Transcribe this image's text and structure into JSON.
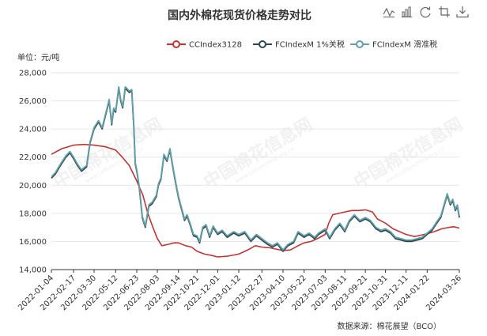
{
  "toolbar": {
    "icons": [
      "line-chart-icon",
      "bar-chart-icon",
      "restore-icon",
      "crop-icon",
      "download-icon"
    ]
  },
  "chart_data": {
    "type": "line",
    "title": "国内外棉花现货价格走势对比",
    "ylabel": "单位：元/吨",
    "ylim": [
      14000,
      28000
    ],
    "yticks": [
      14000,
      16000,
      18000,
      20000,
      22000,
      24000,
      26000,
      28000
    ],
    "ytick_labels": [
      "14,000",
      "16,000",
      "18,000",
      "20,000",
      "22,000",
      "24,000",
      "26,000",
      "28,000"
    ],
    "xlim": [
      "2022-01-04",
      "2024-03-26"
    ],
    "xticks": [
      "2022-01-04",
      "2022-02-17",
      "2022-03-30",
      "2022-05-12",
      "2022-06-23",
      "2022-08-03",
      "2022-09-14",
      "2022-10-21",
      "2022-12-01",
      "2023-01-12",
      "2023-02-27",
      "2023-04-10",
      "2023-05-22",
      "2023-07-03",
      "2023-08-11",
      "2023-09-21",
      "2023-10-31",
      "2023-12-11",
      "2024-01-22",
      "2024-03-26"
    ],
    "grid": "horizontal",
    "legend_position": "top-right",
    "series": [
      {
        "name": "CCIndex3128",
        "color": "#c23531",
        "points": [
          [
            "2022-01-04",
            22200
          ],
          [
            "2022-01-25",
            22600
          ],
          [
            "2022-02-17",
            22850
          ],
          [
            "2022-03-10",
            22900
          ],
          [
            "2022-03-30",
            22850
          ],
          [
            "2022-04-20",
            22750
          ],
          [
            "2022-05-12",
            22500
          ],
          [
            "2022-05-25",
            22000
          ],
          [
            "2022-06-08",
            21400
          ],
          [
            "2022-06-23",
            20300
          ],
          [
            "2022-07-05",
            19300
          ],
          [
            "2022-07-15",
            18000
          ],
          [
            "2022-07-25",
            17000
          ],
          [
            "2022-08-03",
            16200
          ],
          [
            "2022-08-12",
            15700
          ],
          [
            "2022-08-25",
            15800
          ],
          [
            "2022-09-05",
            15900
          ],
          [
            "2022-09-14",
            15900
          ],
          [
            "2022-09-28",
            15700
          ],
          [
            "2022-10-10",
            15600
          ],
          [
            "2022-10-21",
            15300
          ],
          [
            "2022-11-05",
            15100
          ],
          [
            "2022-11-20",
            15000
          ],
          [
            "2022-12-01",
            14900
          ],
          [
            "2022-12-20",
            14950
          ],
          [
            "2023-01-12",
            15100
          ],
          [
            "2023-01-30",
            15400
          ],
          [
            "2023-02-14",
            15700
          ],
          [
            "2023-02-27",
            15600
          ],
          [
            "2023-03-15",
            15550
          ],
          [
            "2023-04-10",
            15350
          ],
          [
            "2023-04-25",
            15400
          ],
          [
            "2023-05-10",
            15700
          ],
          [
            "2023-05-22",
            15900
          ],
          [
            "2023-06-05",
            16000
          ],
          [
            "2023-06-20",
            16250
          ],
          [
            "2023-07-03",
            16500
          ],
          [
            "2023-07-10",
            17300
          ],
          [
            "2023-07-18",
            17900
          ],
          [
            "2023-08-11",
            18100
          ],
          [
            "2023-08-25",
            18200
          ],
          [
            "2023-09-08",
            18200
          ],
          [
            "2023-09-21",
            18250
          ],
          [
            "2023-10-05",
            18100
          ],
          [
            "2023-10-15",
            17600
          ],
          [
            "2023-10-31",
            17300
          ],
          [
            "2023-11-15",
            16900
          ],
          [
            "2023-12-11",
            16500
          ],
          [
            "2023-12-28",
            16350
          ],
          [
            "2024-01-10",
            16450
          ],
          [
            "2024-01-22",
            16550
          ],
          [
            "2024-02-05",
            16700
          ],
          [
            "2024-02-20",
            16900
          ],
          [
            "2024-03-05",
            17000
          ],
          [
            "2024-03-15",
            17050
          ],
          [
            "2024-03-26",
            16950
          ]
        ]
      },
      {
        "name": "FCIndexM 1%关税",
        "color": "#2f4554",
        "points": [
          [
            "2022-01-04",
            20500
          ],
          [
            "2022-01-12",
            20800
          ],
          [
            "2022-01-22",
            21400
          ],
          [
            "2022-02-02",
            22000
          ],
          [
            "2022-02-10",
            22300
          ],
          [
            "2022-02-17",
            21900
          ],
          [
            "2022-02-25",
            21400
          ],
          [
            "2022-03-05",
            21000
          ],
          [
            "2022-03-15",
            21300
          ],
          [
            "2022-03-22",
            23000
          ],
          [
            "2022-03-30",
            24000
          ],
          [
            "2022-04-08",
            24500
          ],
          [
            "2022-04-15",
            24000
          ],
          [
            "2022-04-22",
            25000
          ],
          [
            "2022-04-29",
            26000
          ],
          [
            "2022-05-04",
            24300
          ],
          [
            "2022-05-08",
            25400
          ],
          [
            "2022-05-12",
            25200
          ],
          [
            "2022-05-18",
            26900
          ],
          [
            "2022-05-22",
            26000
          ],
          [
            "2022-05-26",
            25500
          ],
          [
            "2022-05-31",
            26900
          ],
          [
            "2022-06-08",
            26600
          ],
          [
            "2022-06-13",
            26700
          ],
          [
            "2022-06-17",
            24200
          ],
          [
            "2022-06-20",
            21500
          ],
          [
            "2022-06-23",
            21000
          ],
          [
            "2022-06-28",
            19800
          ],
          [
            "2022-07-04",
            17700
          ],
          [
            "2022-07-10",
            17000
          ],
          [
            "2022-07-17",
            18500
          ],
          [
            "2022-07-24",
            18700
          ],
          [
            "2022-08-01",
            19200
          ],
          [
            "2022-08-05",
            20000
          ],
          [
            "2022-08-10",
            20400
          ],
          [
            "2022-08-16",
            22100
          ],
          [
            "2022-08-22",
            21700
          ],
          [
            "2022-08-28",
            22500
          ],
          [
            "2022-09-03",
            21200
          ],
          [
            "2022-09-08",
            20200
          ],
          [
            "2022-09-14",
            19100
          ],
          [
            "2022-09-20",
            18300
          ],
          [
            "2022-09-26",
            17500
          ],
          [
            "2022-10-01",
            17800
          ],
          [
            "2022-10-07",
            17200
          ],
          [
            "2022-10-14",
            16400
          ],
          [
            "2022-10-21",
            16300
          ],
          [
            "2022-10-26",
            15900
          ],
          [
            "2022-11-01",
            16900
          ],
          [
            "2022-11-08",
            17100
          ],
          [
            "2022-11-15",
            16300
          ],
          [
            "2022-11-22",
            17000
          ],
          [
            "2022-12-01",
            16500
          ],
          [
            "2022-12-10",
            16700
          ],
          [
            "2022-12-20",
            16300
          ],
          [
            "2023-01-02",
            16600
          ],
          [
            "2023-01-12",
            16400
          ],
          [
            "2023-01-24",
            16600
          ],
          [
            "2023-02-05",
            16000
          ],
          [
            "2023-02-16",
            16400
          ],
          [
            "2023-02-27",
            16100
          ],
          [
            "2023-03-10",
            15800
          ],
          [
            "2023-03-20",
            15600
          ],
          [
            "2023-03-30",
            15800
          ],
          [
            "2023-04-10",
            15300
          ],
          [
            "2023-04-20",
            15700
          ],
          [
            "2023-05-01",
            15900
          ],
          [
            "2023-05-10",
            16600
          ],
          [
            "2023-05-22",
            16300
          ],
          [
            "2023-06-01",
            16500
          ],
          [
            "2023-06-12",
            16200
          ],
          [
            "2023-06-20",
            16500
          ],
          [
            "2023-07-03",
            16800
          ],
          [
            "2023-07-12",
            16200
          ],
          [
            "2023-07-22",
            16800
          ],
          [
            "2023-08-01",
            17200
          ],
          [
            "2023-08-11",
            16700
          ],
          [
            "2023-08-20",
            17400
          ],
          [
            "2023-08-30",
            17800
          ],
          [
            "2023-09-10",
            17400
          ],
          [
            "2023-09-21",
            17600
          ],
          [
            "2023-10-01",
            17400
          ],
          [
            "2023-10-12",
            16900
          ],
          [
            "2023-10-22",
            16700
          ],
          [
            "2023-10-31",
            16800
          ],
          [
            "2023-11-10",
            16600
          ],
          [
            "2023-11-20",
            16200
          ],
          [
            "2023-12-01",
            16100
          ],
          [
            "2023-12-11",
            16000
          ],
          [
            "2023-12-22",
            16000
          ],
          [
            "2024-01-02",
            16100
          ],
          [
            "2024-01-12",
            16200
          ],
          [
            "2024-01-22",
            16500
          ],
          [
            "2024-02-01",
            16800
          ],
          [
            "2024-02-10",
            17300
          ],
          [
            "2024-02-18",
            17700
          ],
          [
            "2024-02-26",
            18700
          ],
          [
            "2024-03-02",
            19300
          ],
          [
            "2024-03-08",
            18600
          ],
          [
            "2024-03-13",
            18900
          ],
          [
            "2024-03-18",
            18200
          ],
          [
            "2024-03-22",
            18500
          ],
          [
            "2024-03-26",
            17700
          ]
        ]
      },
      {
        "name": "FCIndexM 滑准税",
        "color": "#61a0a8",
        "points": [
          [
            "2022-01-04",
            20600
          ],
          [
            "2022-01-12",
            20900
          ],
          [
            "2022-01-22",
            21500
          ],
          [
            "2022-02-02",
            22100
          ],
          [
            "2022-02-10",
            22400
          ],
          [
            "2022-02-17",
            22000
          ],
          [
            "2022-02-25",
            21500
          ],
          [
            "2022-03-05",
            21100
          ],
          [
            "2022-03-15",
            21400
          ],
          [
            "2022-03-22",
            23100
          ],
          [
            "2022-03-30",
            24100
          ],
          [
            "2022-04-08",
            24600
          ],
          [
            "2022-04-15",
            24100
          ],
          [
            "2022-04-22",
            25100
          ],
          [
            "2022-04-29",
            26100
          ],
          [
            "2022-05-04",
            24400
          ],
          [
            "2022-05-08",
            25500
          ],
          [
            "2022-05-12",
            25300
          ],
          [
            "2022-05-18",
            27000
          ],
          [
            "2022-05-22",
            26100
          ],
          [
            "2022-05-26",
            25600
          ],
          [
            "2022-05-31",
            27000
          ],
          [
            "2022-06-08",
            26700
          ],
          [
            "2022-06-13",
            26800
          ],
          [
            "2022-06-17",
            24300
          ],
          [
            "2022-06-20",
            21600
          ],
          [
            "2022-06-23",
            21100
          ],
          [
            "2022-06-28",
            19900
          ],
          [
            "2022-07-04",
            17800
          ],
          [
            "2022-07-10",
            17100
          ],
          [
            "2022-07-17",
            18600
          ],
          [
            "2022-07-24",
            18800
          ],
          [
            "2022-08-01",
            19300
          ],
          [
            "2022-08-05",
            20100
          ],
          [
            "2022-08-10",
            20500
          ],
          [
            "2022-08-16",
            22200
          ],
          [
            "2022-08-22",
            21800
          ],
          [
            "2022-08-28",
            22600
          ],
          [
            "2022-09-03",
            21300
          ],
          [
            "2022-09-08",
            20300
          ],
          [
            "2022-09-14",
            19200
          ],
          [
            "2022-09-20",
            18400
          ],
          [
            "2022-09-26",
            17600
          ],
          [
            "2022-10-01",
            17900
          ],
          [
            "2022-10-07",
            17300
          ],
          [
            "2022-10-14",
            16500
          ],
          [
            "2022-10-21",
            16400
          ],
          [
            "2022-10-26",
            16000
          ],
          [
            "2022-11-01",
            17000
          ],
          [
            "2022-11-08",
            17200
          ],
          [
            "2022-11-15",
            16400
          ],
          [
            "2022-11-22",
            17100
          ],
          [
            "2022-12-01",
            16600
          ],
          [
            "2022-12-10",
            16800
          ],
          [
            "2022-12-20",
            16400
          ],
          [
            "2023-01-02",
            16700
          ],
          [
            "2023-01-12",
            16500
          ],
          [
            "2023-01-24",
            16700
          ],
          [
            "2023-02-05",
            16100
          ],
          [
            "2023-02-16",
            16500
          ],
          [
            "2023-02-27",
            16200
          ],
          [
            "2023-03-10",
            15900
          ],
          [
            "2023-03-20",
            15700
          ],
          [
            "2023-03-30",
            15900
          ],
          [
            "2023-04-10",
            15400
          ],
          [
            "2023-04-20",
            15800
          ],
          [
            "2023-05-01",
            16000
          ],
          [
            "2023-05-10",
            16700
          ],
          [
            "2023-05-22",
            16400
          ],
          [
            "2023-06-01",
            16600
          ],
          [
            "2023-06-12",
            16300
          ],
          [
            "2023-06-20",
            16600
          ],
          [
            "2023-07-03",
            16900
          ],
          [
            "2023-07-12",
            16300
          ],
          [
            "2023-07-22",
            16900
          ],
          [
            "2023-08-01",
            17300
          ],
          [
            "2023-08-11",
            16800
          ],
          [
            "2023-08-20",
            17500
          ],
          [
            "2023-08-30",
            17900
          ],
          [
            "2023-09-10",
            17500
          ],
          [
            "2023-09-21",
            17700
          ],
          [
            "2023-10-01",
            17500
          ],
          [
            "2023-10-12",
            17000
          ],
          [
            "2023-10-22",
            16800
          ],
          [
            "2023-10-31",
            16900
          ],
          [
            "2023-11-10",
            16700
          ],
          [
            "2023-11-20",
            16300
          ],
          [
            "2023-12-01",
            16200
          ],
          [
            "2023-12-11",
            16100
          ],
          [
            "2023-12-22",
            16100
          ],
          [
            "2024-01-02",
            16200
          ],
          [
            "2024-01-12",
            16300
          ],
          [
            "2024-01-22",
            16600
          ],
          [
            "2024-02-01",
            16900
          ],
          [
            "2024-02-10",
            17400
          ],
          [
            "2024-02-18",
            17800
          ],
          [
            "2024-02-26",
            18800
          ],
          [
            "2024-03-02",
            19400
          ],
          [
            "2024-03-08",
            18700
          ],
          [
            "2024-03-13",
            19000
          ],
          [
            "2024-03-18",
            18300
          ],
          [
            "2024-03-22",
            18600
          ],
          [
            "2024-03-26",
            17800
          ]
        ]
      }
    ],
    "source": "数据来源：棉花展望（BCO）",
    "watermark": "中国棉花信息网",
    "watermark_url": "www.cottonchina.org.cn"
  }
}
